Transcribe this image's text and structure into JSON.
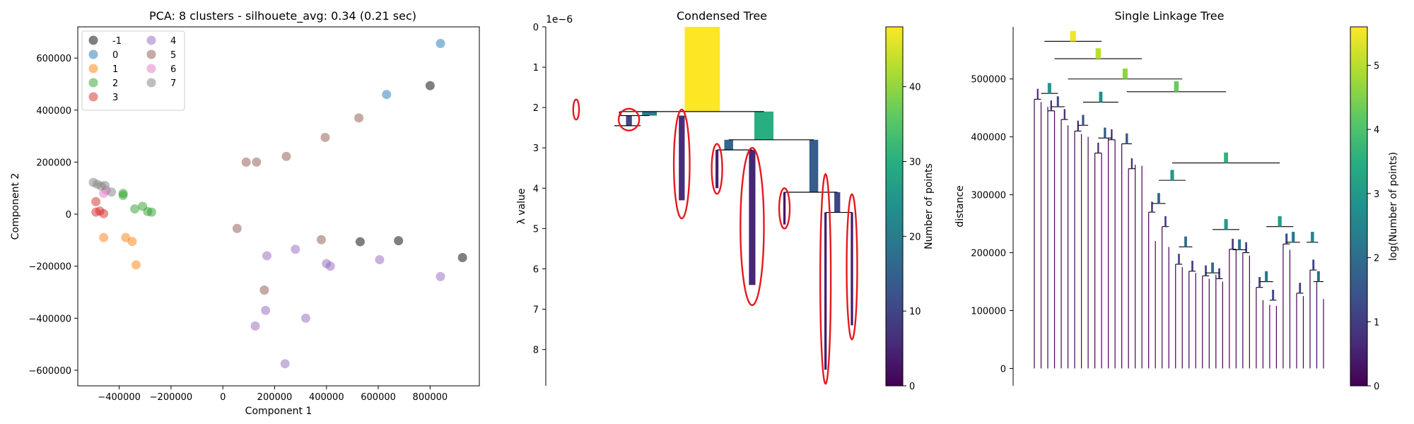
{
  "chart_data": [
    {
      "type": "scatter",
      "title": "PCA: 8 clusters - silhouete_avg: 0.34 (0.21 sec)",
      "xlabel": "Component 1",
      "ylabel": "Component 2",
      "xlim": [
        -560000,
        990000
      ],
      "ylim": [
        -660000,
        720000
      ],
      "xticks": [
        -400000,
        -200000,
        0,
        200000,
        400000,
        600000,
        800000
      ],
      "yticks": [
        -600000,
        -400000,
        -200000,
        0,
        200000,
        400000,
        600000
      ],
      "legend_loc": "upper-left",
      "legend_columns": 2,
      "series": [
        {
          "name": "-1",
          "color": "#000000",
          "points": [
            [
              800000,
              494000
            ],
            [
              530000,
              -106000
            ],
            [
              678000,
              -102000
            ],
            [
              925000,
              -167000
            ]
          ]
        },
        {
          "name": "0",
          "color": "#1f77b4",
          "points": [
            [
              840000,
              656000
            ],
            [
              632000,
              460000
            ]
          ]
        },
        {
          "name": "1",
          "color": "#ff7f0e",
          "points": [
            [
              -460000,
              -90000
            ],
            [
              -375000,
              -90000
            ],
            [
              -350000,
              -105000
            ],
            [
              -335000,
              -195000
            ]
          ]
        },
        {
          "name": "2",
          "color": "#2ca02c",
          "points": [
            [
              -385000,
              80000
            ],
            [
              -385000,
              72000
            ],
            [
              -340000,
              20000
            ],
            [
              -310000,
              30000
            ],
            [
              -290000,
              10000
            ],
            [
              -275000,
              8000
            ]
          ]
        },
        {
          "name": "3",
          "color": "#d62728",
          "points": [
            [
              -490000,
              48000
            ],
            [
              -490000,
              8000
            ],
            [
              -475000,
              12000
            ],
            [
              -460000,
              2000
            ]
          ]
        },
        {
          "name": "4",
          "color": "#9467bd",
          "points": [
            [
              170000,
              -160000
            ],
            [
              280000,
              -135000
            ],
            [
              400000,
              -190000
            ],
            [
              415000,
              -200000
            ],
            [
              605000,
              -175000
            ],
            [
              840000,
              -240000
            ],
            [
              165000,
              -370000
            ],
            [
              125000,
              -430000
            ],
            [
              320000,
              -400000
            ],
            [
              240000,
              -575000
            ]
          ]
        },
        {
          "name": "5",
          "color": "#8c564b",
          "points": [
            [
              90000,
              200000
            ],
            [
              130000,
              200000
            ],
            [
              245000,
              222000
            ],
            [
              395000,
              295000
            ],
            [
              525000,
              370000
            ],
            [
              55000,
              -55000
            ],
            [
              380000,
              -98000
            ],
            [
              160000,
              -292000
            ]
          ]
        },
        {
          "name": "6",
          "color": "#e377c2",
          "points": [
            [
              -460000,
              80000
            ],
            [
              -450000,
              92000
            ]
          ]
        },
        {
          "name": "7",
          "color": "#7f7f7f",
          "points": [
            [
              -500000,
              122000
            ],
            [
              -485000,
              115000
            ],
            [
              -470000,
              108000
            ],
            [
              -455000,
              110000
            ],
            [
              -430000,
              85000
            ]
          ]
        }
      ]
    },
    {
      "type": "condensed_tree",
      "title": "Condensed Tree",
      "ylabel": "λ value",
      "yscale_label": "1e−6",
      "ylim": [
        0,
        8.9
      ],
      "yticks": [
        0,
        1,
        2,
        3,
        4,
        5,
        6,
        7,
        8
      ],
      "colorbar": {
        "label": "Number of points",
        "range": [
          0,
          48
        ],
        "ticks": [
          0,
          10,
          20,
          30,
          40
        ]
      },
      "branches": [
        {
          "x": 0.49,
          "lambda_start": 0.0,
          "lambda_end": 2.1,
          "n_points": 48,
          "width": 0.12
        },
        {
          "x": 0.21,
          "lambda_start": 2.1,
          "lambda_end": 2.2,
          "n_points": 2,
          "width": 0.008
        },
        {
          "x": 0.24,
          "lambda_start": 2.2,
          "lambda_end": 2.45,
          "n_points": 10,
          "width": 0.02
        },
        {
          "x": 0.31,
          "lambda_start": 2.1,
          "lambda_end": 2.2,
          "n_points": 20,
          "width": 0.05
        },
        {
          "x": 0.42,
          "lambda_start": 2.2,
          "lambda_end": 4.3,
          "n_points": 6,
          "width": 0.02
        },
        {
          "x": 0.7,
          "lambda_start": 2.1,
          "lambda_end": 2.8,
          "n_points": 30,
          "width": 0.065
        },
        {
          "x": 0.58,
          "lambda_start": 2.8,
          "lambda_end": 3.05,
          "n_points": 16,
          "width": 0.03
        },
        {
          "x": 0.54,
          "lambda_start": 3.05,
          "lambda_end": 4.0,
          "n_points": 4,
          "width": 0.01
        },
        {
          "x": 0.66,
          "lambda_start": 3.05,
          "lambda_end": 6.4,
          "n_points": 5,
          "width": 0.022
        },
        {
          "x": 0.87,
          "lambda_start": 2.8,
          "lambda_end": 4.1,
          "n_points": 14,
          "width": 0.03
        },
        {
          "x": 0.77,
          "lambda_start": 4.1,
          "lambda_end": 4.9,
          "n_points": 3,
          "width": 0.008
        },
        {
          "x": 0.95,
          "lambda_start": 4.1,
          "lambda_end": 4.6,
          "n_points": 10,
          "width": 0.02
        },
        {
          "x": 0.91,
          "lambda_start": 4.6,
          "lambda_end": 8.5,
          "n_points": 4,
          "width": 0.008
        },
        {
          "x": 1.0,
          "lambda_start": 4.6,
          "lambda_end": 7.4,
          "n_points": 4,
          "width": 0.008
        }
      ],
      "selected_clusters": [
        {
          "x": 0.06,
          "lambda_center": 2.05,
          "rx": 0.01,
          "ry": 0.25
        },
        {
          "x": 0.24,
          "lambda_center": 2.3,
          "rx": 0.035,
          "ry": 0.27
        },
        {
          "x": 0.42,
          "lambda_center": 3.4,
          "rx": 0.027,
          "ry": 1.35
        },
        {
          "x": 0.54,
          "lambda_center": 3.52,
          "rx": 0.018,
          "ry": 0.62
        },
        {
          "x": 0.66,
          "lambda_center": 4.95,
          "rx": 0.04,
          "ry": 1.95
        },
        {
          "x": 0.77,
          "lambda_center": 4.5,
          "rx": 0.018,
          "ry": 0.5
        },
        {
          "x": 0.91,
          "lambda_center": 6.25,
          "rx": 0.018,
          "ry": 2.6
        },
        {
          "x": 1.0,
          "lambda_center": 5.95,
          "rx": 0.018,
          "ry": 1.8
        }
      ]
    },
    {
      "type": "single_linkage_tree",
      "title": "Single Linkage Tree",
      "ylabel": "distance",
      "ylim": [
        -30000,
        590000
      ],
      "yticks": [
        0,
        100000,
        200000,
        300000,
        400000,
        500000
      ],
      "colorbar": {
        "label": "log(Number of points)",
        "range": [
          0,
          5.6
        ],
        "ticks": [
          0,
          1,
          2,
          3,
          4,
          5
        ]
      },
      "n_leaves": 44,
      "merges": [
        [
          0.7,
          1.3,
          232000,
          1.6
        ],
        [
          2.0,
          2.7,
          232000,
          1.6
        ],
        [
          1.0,
          2.35,
          245000,
          2.4
        ],
        [
          4.0,
          4.7,
          218000,
          1.6
        ],
        [
          3.9,
          5.0,
          240000,
          2.3
        ],
        [
          6.0,
          6.6,
          226000,
          1.4
        ],
        [
          5.6,
          6.3,
          240000,
          2.3
        ],
        [
          7.0,
          7.6,
          230000,
          1.4
        ],
        [
          6.9,
          7.3,
          242000,
          1.9
        ],
        [
          9.0,
          9.6,
          248000,
          1.6
        ],
        [
          8.0,
          9.3,
          255000,
          2.3
        ],
        [
          11.0,
          11.6,
          252000,
          1.4
        ],
        [
          12.0,
          12.6,
          257000,
          1.4
        ],
        [
          13.0,
          13.6,
          260000,
          1.4
        ],
        [
          12.3,
          13.3,
          264000,
          2.0
        ],
        [
          11.3,
          12.8,
          268000,
          2.4
        ],
        [
          10.5,
          11.7,
          272000,
          2.6
        ],
        [
          15.0,
          15.6,
          265000,
          1.4
        ],
        [
          14.6,
          15.3,
          269000,
          1.9
        ],
        [
          17.0,
          17.6,
          282000,
          1.4
        ],
        [
          16.0,
          17.3,
          286000,
          2.0
        ],
        [
          18.0,
          18.6,
          280000,
          1.4
        ],
        [
          19.0,
          19.6,
          281000,
          1.4
        ],
        [
          18.3,
          19.3,
          292000,
          2.0
        ],
        [
          16.65,
          18.8,
          300000,
          2.6
        ],
        [
          21.0,
          21.6,
          306000,
          1.4
        ],
        [
          22.0,
          22.6,
          308000,
          1.4
        ],
        [
          21.3,
          22.3,
          312000,
          2.0
        ],
        [
          23.0,
          23.6,
          318000,
          1.4
        ],
        [
          24.0,
          24.6,
          322000,
          1.4
        ],
        [
          23.3,
          24.3,
          326000,
          2.0
        ],
        [
          21.8,
          23.8,
          332000,
          2.8
        ],
        [
          20.0,
          22.8,
          336000,
          3.0
        ]
      ]
    }
  ]
}
